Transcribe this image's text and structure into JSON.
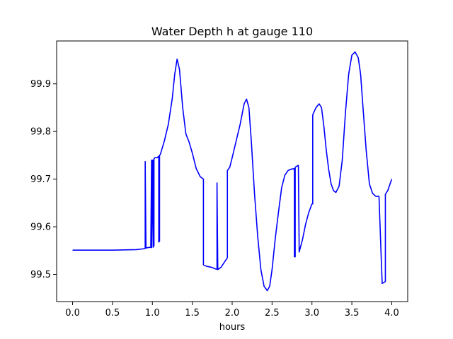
{
  "chart_data": {
    "type": "line",
    "title": "Water Depth h at gauge 110",
    "xlabel": "hours",
    "ylabel": "",
    "xlim": [
      -0.2,
      4.2
    ],
    "ylim": [
      99.443,
      99.99
    ],
    "grid": false,
    "xticks": [
      0.0,
      0.5,
      1.0,
      1.5,
      2.0,
      2.5,
      3.0,
      3.5,
      4.0
    ],
    "xtick_labels": [
      "0.0",
      "0.5",
      "1.0",
      "1.5",
      "2.0",
      "2.5",
      "3.0",
      "3.5",
      "4.0"
    ],
    "yticks": [
      99.5,
      99.6,
      99.7,
      99.8,
      99.9
    ],
    "ytick_labels": [
      "99.5",
      "99.6",
      "99.7",
      "99.8",
      "99.9"
    ],
    "series": [
      {
        "color": "#0000ff",
        "x": [
          0.0,
          0.5,
          0.8,
          0.9,
          0.91,
          0.91,
          0.92,
          0.93,
          0.98,
          0.99,
          0.99,
          1.0,
          1.01,
          1.01,
          1.02,
          1.02,
          1.03,
          1.03,
          1.04,
          1.06,
          1.08,
          1.08,
          1.09,
          1.09,
          1.1,
          1.15,
          1.2,
          1.25,
          1.28,
          1.31,
          1.34,
          1.38,
          1.42,
          1.46,
          1.5,
          1.55,
          1.6,
          1.64,
          1.64,
          1.68,
          1.74,
          1.8,
          1.81,
          1.81,
          1.82,
          1.82,
          1.86,
          1.9,
          1.94,
          1.94,
          1.97,
          2.0,
          2.05,
          2.1,
          2.15,
          2.18,
          2.21,
          2.24,
          2.28,
          2.32,
          2.36,
          2.4,
          2.44,
          2.47,
          2.5,
          2.54,
          2.58,
          2.62,
          2.66,
          2.7,
          2.74,
          2.78,
          2.78,
          2.79,
          2.79,
          2.8,
          2.83,
          2.83,
          2.84,
          2.84,
          2.88,
          2.92,
          2.96,
          3.0,
          3.01,
          3.01,
          3.05,
          3.09,
          3.12,
          3.15,
          3.18,
          3.21,
          3.24,
          3.27,
          3.3,
          3.34,
          3.38,
          3.42,
          3.46,
          3.5,
          3.54,
          3.58,
          3.61,
          3.64,
          3.68,
          3.72,
          3.76,
          3.8,
          3.84,
          3.88,
          3.88,
          3.9,
          3.92,
          3.92,
          3.95,
          4.0
        ],
        "y": [
          99.551,
          99.551,
          99.552,
          99.554,
          99.555,
          99.737,
          99.555,
          99.556,
          99.557,
          99.74,
          99.556,
          99.74,
          99.557,
          99.74,
          99.56,
          99.742,
          99.745,
          99.745,
          99.745,
          99.745,
          99.748,
          99.568,
          99.57,
          99.75,
          99.752,
          99.78,
          99.815,
          99.87,
          99.92,
          99.952,
          99.93,
          99.85,
          99.795,
          99.778,
          99.755,
          99.722,
          99.705,
          99.7,
          99.52,
          99.517,
          99.515,
          99.511,
          99.511,
          99.692,
          99.511,
          99.51,
          99.515,
          99.525,
          99.535,
          99.718,
          99.725,
          99.745,
          99.78,
          99.815,
          99.858,
          99.868,
          99.85,
          99.78,
          99.67,
          99.58,
          99.51,
          99.475,
          99.466,
          99.475,
          99.51,
          99.575,
          99.63,
          99.682,
          99.708,
          99.718,
          99.721,
          99.722,
          99.537,
          99.537,
          99.725,
          99.726,
          99.729,
          99.729,
          99.547,
          99.547,
          99.572,
          99.605,
          99.63,
          99.648,
          99.648,
          99.835,
          99.85,
          99.858,
          99.85,
          99.81,
          99.76,
          99.72,
          99.69,
          99.676,
          99.672,
          99.685,
          99.74,
          99.84,
          99.92,
          99.96,
          99.967,
          99.955,
          99.92,
          99.85,
          99.76,
          99.69,
          99.67,
          99.664,
          99.664,
          99.481,
          99.481,
          99.483,
          99.485,
          99.668,
          99.676,
          99.7
        ]
      }
    ]
  }
}
